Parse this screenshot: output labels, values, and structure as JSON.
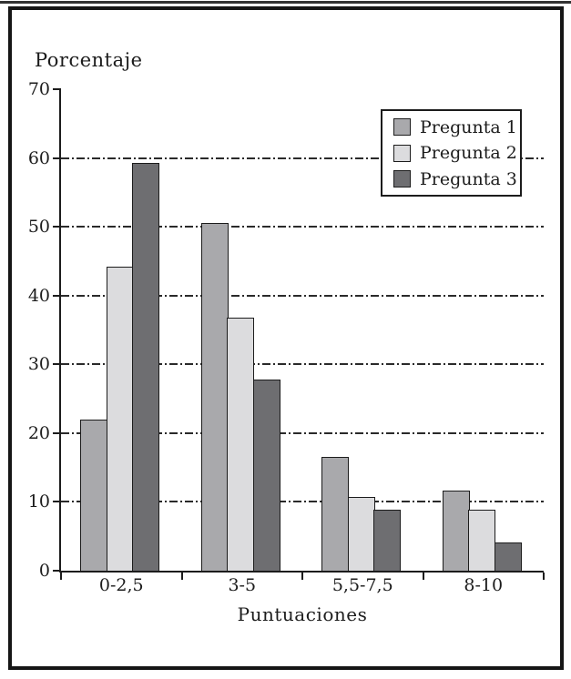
{
  "chart_data": {
    "type": "bar",
    "title": "Porcentaje",
    "xlabel": "Puntuaciones",
    "ylabel": "Porcentaje",
    "categories": [
      "0-2,5",
      "3-5",
      "5,5-7,5",
      "8-10"
    ],
    "series": [
      {
        "name": "Pregunta 1",
        "color": "#a9a9ac",
        "values": [
          22.0,
          50.5,
          16.5,
          11.6
        ]
      },
      {
        "name": "Pregunta 2",
        "color": "#dcdcde",
        "values": [
          44.2,
          36.8,
          10.7,
          8.9
        ]
      },
      {
        "name": "Pregunta 3",
        "color": "#6e6e71",
        "values": [
          59.3,
          27.8,
          8.9,
          4.1
        ]
      }
    ],
    "ylim": [
      0,
      70
    ],
    "yticks": [
      0,
      10,
      20,
      30,
      40,
      50,
      60,
      70
    ],
    "gridlines_at": [
      10,
      20,
      30,
      40,
      50,
      60
    ],
    "gridline_style": "dash-dot",
    "grid": true,
    "legend_position": "top-right",
    "legend_entries": [
      "Pregunta 1",
      "Pregunta 2",
      "Pregunta 3"
    ]
  },
  "colors": {
    "ink": "#1c1c1c",
    "background": "#ffffff",
    "frame_border": "#161616",
    "pregunta1": "#a9a9ac",
    "pregunta2": "#dcdcde",
    "pregunta3": "#6e6e71"
  }
}
